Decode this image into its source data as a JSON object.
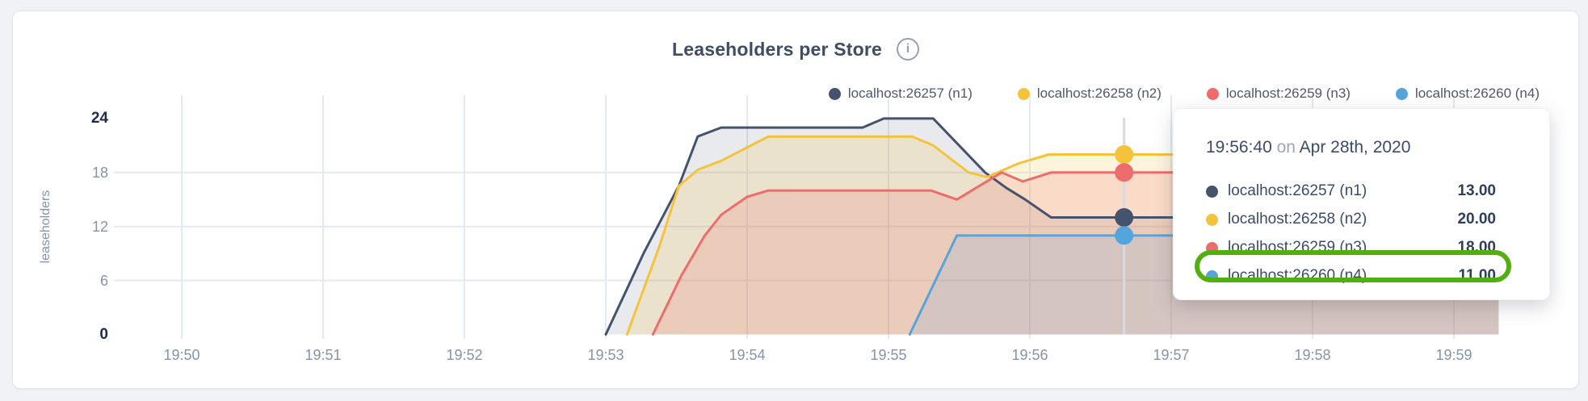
{
  "header": {
    "title": "Leaseholders per Store",
    "info_icon_glyph": "i"
  },
  "tooltip": {
    "time": "19:56:40",
    "connector": "on",
    "date": "Apr 28th, 2020",
    "rows": [
      {
        "name": "localhost:26257 (n1)",
        "value": "13.00"
      },
      {
        "name": "localhost:26258 (n2)",
        "value": "20.00"
      },
      {
        "name": "localhost:26259 (n3)",
        "value": "18.00"
      },
      {
        "name": "localhost:26260 (n4)",
        "value": "11.00"
      }
    ],
    "highlighted_row_index": 3,
    "highlight_color": "#53AE10"
  },
  "chart_data": {
    "type": "area",
    "title": "Leaseholders per Store",
    "xlabel": "",
    "ylabel": "leaseholders",
    "ylim": [
      0,
      24
    ],
    "grid": true,
    "legend_position": "top-right",
    "colors": {
      "grid": "#E5E9F1",
      "hover_line": "#D8DADD",
      "axis_text": "#8494AB",
      "axis_text_emphasis": "#1D2C4D"
    },
    "x_ticks": [
      {
        "time": "19:50:00",
        "label": "19:50"
      },
      {
        "time": "19:51:00",
        "label": "19:51"
      },
      {
        "time": "19:52:00",
        "label": "19:52"
      },
      {
        "time": "19:53:00",
        "label": "19:53"
      },
      {
        "time": "19:54:00",
        "label": "19:54"
      },
      {
        "time": "19:55:00",
        "label": "19:55"
      },
      {
        "time": "19:56:00",
        "label": "19:56"
      },
      {
        "time": "19:57:00",
        "label": "19:57"
      },
      {
        "time": "19:58:00",
        "label": "19:58"
      },
      {
        "time": "19:59:00",
        "label": "19:59"
      }
    ],
    "y_ticks": [
      {
        "value": 24,
        "label": "24",
        "emphasis": true
      },
      {
        "value": 18,
        "label": "18",
        "emphasis": false
      },
      {
        "value": 12,
        "label": "12",
        "emphasis": false
      },
      {
        "value": 6,
        "label": "6",
        "emphasis": false
      },
      {
        "value": 0,
        "label": "0",
        "emphasis": true
      }
    ],
    "y_gridlines": [
      18,
      12,
      6
    ],
    "series": [
      {
        "name": "localhost:26257 (n1)",
        "node": "n1",
        "color": "#46536D",
        "fill_opacity": 0.12,
        "points": [
          [
            "19:53:00",
            0
          ],
          [
            "19:53:16",
            9
          ],
          [
            "19:53:31",
            16.5
          ],
          [
            "19:53:39",
            22
          ],
          [
            "19:53:49",
            23
          ],
          [
            "19:54:49",
            23
          ],
          [
            "19:54:58",
            24
          ],
          [
            "19:55:19",
            24
          ],
          [
            "19:55:41",
            18
          ],
          [
            "19:55:50",
            16.3
          ],
          [
            "19:55:58",
            15
          ],
          [
            "19:56:09",
            13
          ],
          [
            "19:59:19",
            13
          ]
        ]
      },
      {
        "name": "localhost:26258 (n2)",
        "node": "n2",
        "color": "#F5C33B",
        "fill_opacity": 0.18,
        "points": [
          [
            "19:53:09",
            0
          ],
          [
            "19:53:23",
            10
          ],
          [
            "19:53:31",
            16.5
          ],
          [
            "19:53:39",
            18.3
          ],
          [
            "19:53:49",
            19.3
          ],
          [
            "19:54:09",
            22
          ],
          [
            "19:55:10",
            22
          ],
          [
            "19:55:19",
            21
          ],
          [
            "19:55:34",
            18
          ],
          [
            "19:55:42",
            17.5
          ],
          [
            "19:55:55",
            19
          ],
          [
            "19:56:08",
            20
          ],
          [
            "19:59:19",
            20
          ]
        ]
      },
      {
        "name": "localhost:26259 (n3)",
        "node": "n3",
        "color": "#EE6C6C",
        "fill_opacity": 0.18,
        "points": [
          [
            "19:53:20",
            0
          ],
          [
            "19:53:32",
            6.5
          ],
          [
            "19:53:42",
            11
          ],
          [
            "19:53:49",
            13.3
          ],
          [
            "19:54:00",
            15.3
          ],
          [
            "19:54:09",
            16
          ],
          [
            "19:55:18",
            16
          ],
          [
            "19:55:29",
            15
          ],
          [
            "19:55:48",
            18
          ],
          [
            "19:55:57",
            17
          ],
          [
            "19:56:09",
            18
          ],
          [
            "19:59:19",
            18
          ]
        ]
      },
      {
        "name": "localhost:26260 (n4)",
        "node": "n4",
        "color": "#55A4DB",
        "fill_opacity": 0.15,
        "points": [
          [
            "19:55:09",
            0
          ],
          [
            "19:55:29",
            11
          ],
          [
            "19:59:19",
            11
          ]
        ]
      }
    ],
    "hover": {
      "time": "19:56:40",
      "values": [
        13,
        20,
        18,
        11
      ]
    }
  }
}
